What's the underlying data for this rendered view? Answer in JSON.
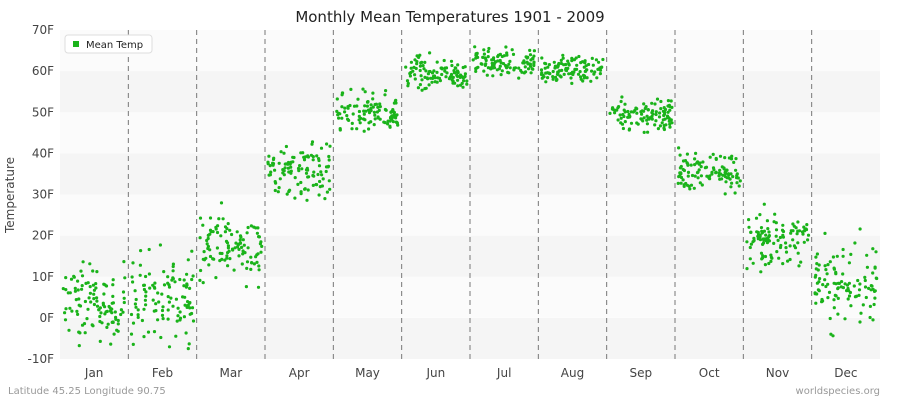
{
  "chart_data": {
    "type": "scatter",
    "title": "Monthly Mean Temperatures 1901 - 2009",
    "ylabel": "Temperature",
    "xlabel": "",
    "categories": [
      "Jan",
      "Feb",
      "Mar",
      "Apr",
      "May",
      "Jun",
      "Jul",
      "Aug",
      "Sep",
      "Oct",
      "Nov",
      "Dec"
    ],
    "y_ticks": [
      "-10F",
      "0F",
      "10F",
      "20F",
      "30F",
      "40F",
      "50F",
      "60F",
      "70F"
    ],
    "ylim": [
      -10,
      70
    ],
    "grid": "horizontal bands, dashed vertical month separators",
    "legend": {
      "position": "top-left",
      "entries": [
        "Mean Temp"
      ]
    },
    "series": [
      {
        "name": "Mean Temp",
        "color": "#1ab31a",
        "years": "1901-2009",
        "monthly_mean": [
          3.5,
          5.0,
          17.5,
          36.0,
          49.5,
          59.5,
          62.0,
          60.5,
          49.5,
          35.5,
          19.0,
          8.0
        ],
        "monthly_spread": [
          4.5,
          5.5,
          4.0,
          3.5,
          2.5,
          2.0,
          1.6,
          1.5,
          2.2,
          2.6,
          3.0,
          5.0
        ]
      }
    ]
  },
  "footer": {
    "left": "Latitude 45.25 Longitude 90.75",
    "right": "worldspecies.org"
  }
}
